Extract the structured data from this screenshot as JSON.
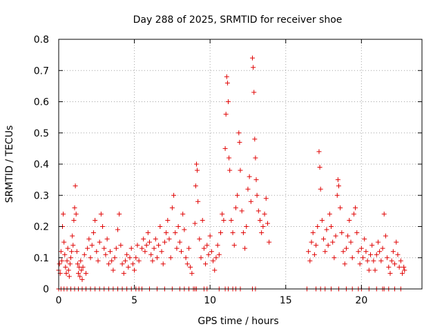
{
  "chart_data": {
    "type": "scatter",
    "title": "Day 288 of 2025, SRMTID for receiver shoe",
    "xlabel": "GPS time / hours",
    "ylabel": "SRMTID / TECUs",
    "xlim": [
      0,
      24
    ],
    "ylim": [
      0,
      0.8
    ],
    "xticks": [
      0,
      5,
      10,
      15,
      20
    ],
    "xtick_labels": [
      "0",
      "5",
      "10",
      "15",
      "20"
    ],
    "yticks": [
      0,
      0.1,
      0.2,
      0.3,
      0.4,
      0.5,
      0.6,
      0.7,
      0.8
    ],
    "ytick_labels": [
      "0",
      "0.1",
      "0.2",
      "0.3",
      "0.4",
      "0.5",
      "0.6",
      "0.7",
      "0.8"
    ],
    "grid": true,
    "marker": "plus",
    "color": "#e00000",
    "series": [
      {
        "name": "SRMTID",
        "points": [
          [
            0.0,
            0.06
          ],
          [
            0.05,
            0.08
          ],
          [
            0.1,
            0.05
          ],
          [
            0.15,
            0.12
          ],
          [
            0.2,
            0.09
          ],
          [
            0.25,
            0.2
          ],
          [
            0.3,
            0.24
          ],
          [
            0.35,
            0.15
          ],
          [
            0.4,
            0.11
          ],
          [
            0.45,
            0.07
          ],
          [
            0.5,
            0.05
          ],
          [
            0.55,
            0.09
          ],
          [
            0.6,
            0.13
          ],
          [
            0.65,
            0.06
          ],
          [
            0.7,
            0.04
          ],
          [
            0.75,
            0.08
          ],
          [
            0.8,
            0.1
          ],
          [
            0.85,
            0.12
          ],
          [
            0.9,
            0.17
          ],
          [
            0.95,
            0.14
          ],
          [
            1.0,
            0.22
          ],
          [
            1.05,
            0.26
          ],
          [
            1.1,
            0.33
          ],
          [
            1.15,
            0.24
          ],
          [
            1.2,
            0.12
          ],
          [
            1.25,
            0.08
          ],
          [
            1.3,
            0.05
          ],
          [
            1.35,
            0.07
          ],
          [
            1.4,
            0.04
          ],
          [
            1.45,
            0.09
          ],
          [
            1.5,
            0.06
          ],
          [
            1.55,
            0.03
          ],
          [
            1.6,
            0.07
          ],
          [
            1.7,
            0.11
          ],
          [
            1.8,
            0.05
          ],
          [
            1.9,
            0.13
          ],
          [
            2.0,
            0.16
          ],
          [
            2.1,
            0.1
          ],
          [
            2.2,
            0.14
          ],
          [
            2.3,
            0.18
          ],
          [
            2.4,
            0.22
          ],
          [
            2.5,
            0.12
          ],
          [
            2.6,
            0.09
          ],
          [
            2.7,
            0.15
          ],
          [
            2.8,
            0.24
          ],
          [
            2.9,
            0.2
          ],
          [
            3.0,
            0.13
          ],
          [
            3.1,
            0.11
          ],
          [
            3.2,
            0.16
          ],
          [
            3.3,
            0.08
          ],
          [
            3.4,
            0.12
          ],
          [
            3.5,
            0.09
          ],
          [
            3.6,
            0.06
          ],
          [
            3.7,
            0.1
          ],
          [
            3.8,
            0.13
          ],
          [
            3.9,
            0.19
          ],
          [
            4.0,
            0.24
          ],
          [
            4.1,
            0.14
          ],
          [
            4.2,
            0.08
          ],
          [
            4.3,
            0.05
          ],
          [
            4.4,
            0.09
          ],
          [
            4.5,
            0.11
          ],
          [
            4.6,
            0.07
          ],
          [
            4.7,
            0.1
          ],
          [
            4.8,
            0.13
          ],
          [
            4.9,
            0.08
          ],
          [
            5.0,
            0.06
          ],
          [
            5.1,
            0.1
          ],
          [
            5.2,
            0.14
          ],
          [
            5.3,
            0.09
          ],
          [
            5.5,
            0.13
          ],
          [
            5.6,
            0.16
          ],
          [
            5.7,
            0.12
          ],
          [
            5.8,
            0.14
          ],
          [
            5.9,
            0.18
          ],
          [
            6.0,
            0.15
          ],
          [
            6.1,
            0.11
          ],
          [
            6.2,
            0.09
          ],
          [
            6.3,
            0.13
          ],
          [
            6.4,
            0.16
          ],
          [
            6.5,
            0.1
          ],
          [
            6.6,
            0.14
          ],
          [
            6.7,
            0.2
          ],
          [
            6.8,
            0.12
          ],
          [
            6.9,
            0.08
          ],
          [
            7.0,
            0.15
          ],
          [
            7.1,
            0.18
          ],
          [
            7.2,
            0.22
          ],
          [
            7.3,
            0.16
          ],
          [
            7.4,
            0.1
          ],
          [
            7.5,
            0.26
          ],
          [
            7.6,
            0.3
          ],
          [
            7.7,
            0.18
          ],
          [
            7.8,
            0.13
          ],
          [
            7.9,
            0.2
          ],
          [
            8.0,
            0.15
          ],
          [
            8.1,
            0.12
          ],
          [
            8.2,
            0.24
          ],
          [
            8.3,
            0.19
          ],
          [
            8.4,
            0.1
          ],
          [
            8.5,
            0.08
          ],
          [
            8.6,
            0.13
          ],
          [
            8.7,
            0.07
          ],
          [
            8.8,
            0.05
          ],
          [
            9.0,
            0.21
          ],
          [
            9.05,
            0.33
          ],
          [
            9.1,
            0.4
          ],
          [
            9.15,
            0.38
          ],
          [
            9.2,
            0.28
          ],
          [
            9.3,
            0.16
          ],
          [
            9.4,
            0.1
          ],
          [
            9.5,
            0.22
          ],
          [
            9.6,
            0.13
          ],
          [
            9.7,
            0.08
          ],
          [
            9.8,
            0.14
          ],
          [
            9.9,
            0.11
          ],
          [
            10.0,
            0.17
          ],
          [
            10.1,
            0.12
          ],
          [
            10.2,
            0.09
          ],
          [
            10.3,
            0.06
          ],
          [
            10.4,
            0.1
          ],
          [
            10.5,
            0.14
          ],
          [
            10.6,
            0.11
          ],
          [
            10.7,
            0.18
          ],
          [
            10.8,
            0.24
          ],
          [
            10.9,
            0.22
          ],
          [
            11.0,
            0.45
          ],
          [
            11.05,
            0.56
          ],
          [
            11.1,
            0.68
          ],
          [
            11.15,
            0.66
          ],
          [
            11.2,
            0.6
          ],
          [
            11.25,
            0.42
          ],
          [
            11.3,
            0.38
          ],
          [
            11.4,
            0.22
          ],
          [
            11.5,
            0.18
          ],
          [
            11.6,
            0.14
          ],
          [
            11.7,
            0.26
          ],
          [
            11.8,
            0.3
          ],
          [
            11.9,
            0.5
          ],
          [
            11.95,
            0.47
          ],
          [
            12.0,
            0.38
          ],
          [
            12.1,
            0.25
          ],
          [
            12.2,
            0.18
          ],
          [
            12.3,
            0.13
          ],
          [
            12.4,
            0.2
          ],
          [
            12.5,
            0.32
          ],
          [
            12.6,
            0.36
          ],
          [
            12.7,
            0.28
          ],
          [
            12.8,
            0.74
          ],
          [
            12.85,
            0.71
          ],
          [
            12.9,
            0.63
          ],
          [
            12.95,
            0.48
          ],
          [
            13.0,
            0.42
          ],
          [
            13.05,
            0.35
          ],
          [
            13.1,
            0.3
          ],
          [
            13.2,
            0.25
          ],
          [
            13.3,
            0.22
          ],
          [
            13.4,
            0.18
          ],
          [
            13.5,
            0.2
          ],
          [
            13.6,
            0.24
          ],
          [
            13.7,
            0.29
          ],
          [
            13.8,
            0.21
          ],
          [
            13.9,
            0.15
          ],
          [
            16.5,
            0.12
          ],
          [
            16.6,
            0.09
          ],
          [
            16.7,
            0.15
          ],
          [
            16.8,
            0.18
          ],
          [
            16.9,
            0.11
          ],
          [
            17.0,
            0.14
          ],
          [
            17.1,
            0.2
          ],
          [
            17.2,
            0.44
          ],
          [
            17.25,
            0.39
          ],
          [
            17.3,
            0.32
          ],
          [
            17.4,
            0.22
          ],
          [
            17.5,
            0.16
          ],
          [
            17.6,
            0.12
          ],
          [
            17.7,
            0.19
          ],
          [
            17.8,
            0.14
          ],
          [
            17.9,
            0.24
          ],
          [
            18.0,
            0.2
          ],
          [
            18.1,
            0.15
          ],
          [
            18.2,
            0.1
          ],
          [
            18.3,
            0.17
          ],
          [
            18.4,
            0.3
          ],
          [
            18.45,
            0.35
          ],
          [
            18.5,
            0.33
          ],
          [
            18.6,
            0.26
          ],
          [
            18.7,
            0.18
          ],
          [
            18.8,
            0.12
          ],
          [
            18.9,
            0.08
          ],
          [
            19.0,
            0.13
          ],
          [
            19.1,
            0.17
          ],
          [
            19.2,
            0.22
          ],
          [
            19.3,
            0.15
          ],
          [
            19.4,
            0.1
          ],
          [
            19.5,
            0.24
          ],
          [
            19.6,
            0.26
          ],
          [
            19.7,
            0.18
          ],
          [
            19.8,
            0.12
          ],
          [
            19.9,
            0.08
          ],
          [
            20.0,
            0.13
          ],
          [
            20.1,
            0.1
          ],
          [
            20.2,
            0.16
          ],
          [
            20.3,
            0.12
          ],
          [
            20.4,
            0.09
          ],
          [
            20.5,
            0.06
          ],
          [
            20.6,
            0.11
          ],
          [
            20.7,
            0.14
          ],
          [
            20.8,
            0.09
          ],
          [
            20.9,
            0.06
          ],
          [
            21.0,
            0.11
          ],
          [
            21.1,
            0.15
          ],
          [
            21.2,
            0.12
          ],
          [
            21.3,
            0.09
          ],
          [
            21.4,
            0.13
          ],
          [
            21.5,
            0.24
          ],
          [
            21.6,
            0.17
          ],
          [
            21.7,
            0.1
          ],
          [
            21.8,
            0.07
          ],
          [
            21.9,
            0.05
          ],
          [
            22.0,
            0.09
          ],
          [
            22.1,
            0.12
          ],
          [
            22.2,
            0.08
          ],
          [
            22.3,
            0.15
          ],
          [
            22.4,
            0.11
          ],
          [
            22.5,
            0.07
          ],
          [
            22.6,
            0.09
          ],
          [
            22.7,
            0.05
          ],
          [
            22.8,
            0.07
          ],
          [
            22.85,
            0.06
          ]
        ]
      }
    ],
    "zero_markers_x": [
      0.0,
      0.15,
      0.35,
      0.55,
      0.8,
      1.05,
      1.3,
      1.55,
      1.8,
      2.1,
      2.4,
      2.7,
      3.0,
      3.3,
      3.6,
      3.9,
      4.2,
      4.5,
      4.8,
      5.1,
      5.3,
      5.5,
      6.0,
      6.5,
      7.0,
      7.5,
      8.0,
      8.3,
      8.6,
      8.9,
      9.0,
      9.1,
      9.6,
      9.8,
      10.6,
      11.0,
      11.2,
      11.5,
      11.7,
      12.0,
      12.8,
      13.0,
      16.4,
      17.0,
      17.3,
      17.6,
      18.0,
      18.5,
      19.0,
      19.4,
      19.8,
      20.0,
      20.5,
      21.0,
      21.4,
      21.5,
      21.8,
      22.2,
      22.6
    ]
  }
}
